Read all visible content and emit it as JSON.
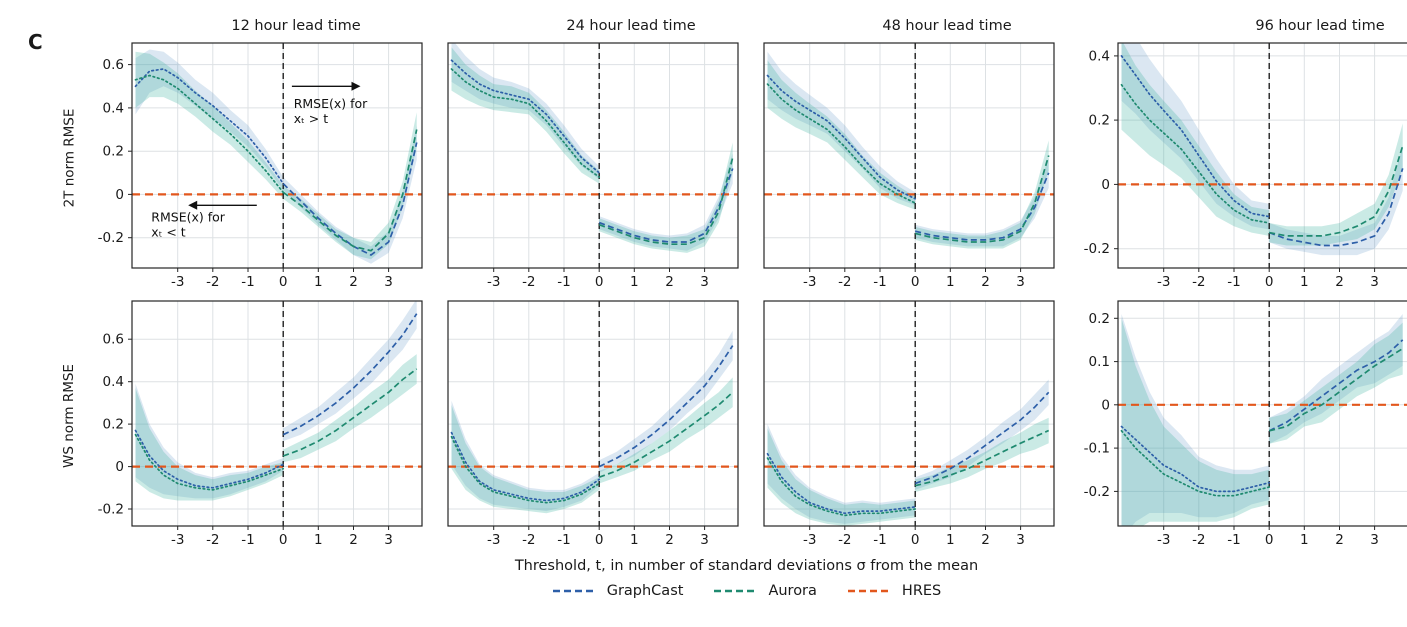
{
  "panel_label": "C",
  "xaxis_label": "Threshold, t, in number of standard deviations σ from the mean",
  "rows": [
    {
      "label": "2T norm RMSE"
    },
    {
      "label": "WS norm RMSE"
    }
  ],
  "legend": [
    {
      "label": "GraphCast",
      "color": "#2d5fa8"
    },
    {
      "label": "Aurora",
      "color": "#1f8a70"
    },
    {
      "label": "HRES",
      "color": "#e2571d"
    }
  ],
  "colors": {
    "graphcast_band": "rgba(77,133,189,0.20)",
    "aurora_band": "rgba(64,180,160,0.28)",
    "grid": "#dde1e4",
    "zero_line": "#111111"
  },
  "chart_data": [
    {
      "type": "line",
      "title": "12 hour lead time",
      "row": "2T norm RMSE",
      "xlim": [
        -4.3,
        3.95
      ],
      "ylim": [
        -0.34,
        0.7
      ],
      "xticks": [
        -3,
        -2,
        -1,
        0,
        1,
        2,
        3
      ],
      "yticks": [
        -0.2,
        0,
        0.2,
        0.4,
        0.6
      ],
      "hres_y": 0,
      "x_left": [
        -4.2,
        -3.8,
        -3.4,
        -3.0,
        -2.5,
        -2.0,
        -1.5,
        -1.0,
        -0.5,
        0.0
      ],
      "x_right": [
        0.0,
        0.5,
        1.0,
        1.5,
        2.0,
        2.5,
        3.0,
        3.4,
        3.8
      ],
      "spread_left": [
        0.13,
        0.1,
        0.08,
        0.07,
        0.06,
        0.06,
        0.05,
        0.05,
        0.04,
        0.03
      ],
      "spread_right": [
        0.03,
        0.03,
        0.03,
        0.03,
        0.04,
        0.04,
        0.05,
        0.06,
        0.08
      ],
      "series": [
        {
          "name": "GraphCast",
          "left": [
            0.5,
            0.57,
            0.58,
            0.54,
            0.47,
            0.41,
            0.34,
            0.27,
            0.17,
            0.05
          ],
          "right": [
            0.05,
            -0.03,
            -0.11,
            -0.18,
            -0.24,
            -0.28,
            -0.22,
            -0.05,
            0.24
          ]
        },
        {
          "name": "Aurora",
          "left": [
            0.53,
            0.55,
            0.53,
            0.49,
            0.42,
            0.35,
            0.28,
            0.2,
            0.11,
            0.01
          ],
          "right": [
            0.01,
            -0.05,
            -0.12,
            -0.19,
            -0.24,
            -0.26,
            -0.18,
            0.0,
            0.3
          ]
        }
      ],
      "annotations": [
        {
          "type": "arrow",
          "dir": "right",
          "x1": 0.25,
          "y1": 0.5,
          "x2": 2.2,
          "y2": 0.5
        },
        {
          "type": "text",
          "x": 0.3,
          "y": 0.4,
          "anchor": "start",
          "lines": [
            "RMSE(x) for",
            "xₜ > t"
          ]
        },
        {
          "type": "arrow",
          "dir": "left",
          "x1": -0.75,
          "y1": -0.05,
          "x2": -2.7,
          "y2": -0.05
        },
        {
          "type": "text",
          "x": -3.75,
          "y": -0.125,
          "anchor": "start",
          "lines": [
            "RMSE(x) for",
            "xₜ < t"
          ]
        }
      ]
    },
    {
      "type": "line",
      "title": "24 hour lead time",
      "row": "2T norm RMSE",
      "xlim": [
        -4.3,
        3.95
      ],
      "ylim": [
        -0.34,
        0.7
      ],
      "xticks": [
        -3,
        -2,
        -1,
        0,
        1,
        2,
        3
      ],
      "yticks": [
        -0.2,
        0,
        0.2,
        0.4,
        0.6
      ],
      "hres_y": 0,
      "x_left": [
        -4.2,
        -3.8,
        -3.4,
        -3.0,
        -2.5,
        -2.0,
        -1.5,
        -1.0,
        -0.5,
        0.0
      ],
      "x_right": [
        0.0,
        0.5,
        1.0,
        1.5,
        2.0,
        2.5,
        3.0,
        3.4,
        3.8
      ],
      "spread_left": [
        0.1,
        0.08,
        0.07,
        0.06,
        0.06,
        0.05,
        0.05,
        0.05,
        0.04,
        0.03
      ],
      "spread_right": [
        0.03,
        0.03,
        0.03,
        0.03,
        0.03,
        0.04,
        0.04,
        0.05,
        0.07
      ],
      "series": [
        {
          "name": "GraphCast",
          "left": [
            0.62,
            0.56,
            0.51,
            0.48,
            0.46,
            0.44,
            0.37,
            0.27,
            0.17,
            0.1
          ],
          "right": [
            -0.13,
            -0.16,
            -0.19,
            -0.21,
            -0.22,
            -0.22,
            -0.18,
            -0.06,
            0.12
          ]
        },
        {
          "name": "Aurora",
          "left": [
            0.58,
            0.52,
            0.48,
            0.45,
            0.44,
            0.42,
            0.34,
            0.24,
            0.14,
            0.08
          ],
          "right": [
            -0.14,
            -0.17,
            -0.2,
            -0.22,
            -0.23,
            -0.23,
            -0.2,
            -0.08,
            0.17
          ]
        }
      ]
    },
    {
      "type": "line",
      "title": "48 hour lead time",
      "row": "2T norm RMSE",
      "xlim": [
        -4.3,
        3.95
      ],
      "ylim": [
        -0.34,
        0.7
      ],
      "xticks": [
        -3,
        -2,
        -1,
        0,
        1,
        2,
        3
      ],
      "yticks": [
        -0.2,
        0,
        0.2,
        0.4,
        0.6
      ],
      "hres_y": 0,
      "x_left": [
        -4.2,
        -3.8,
        -3.4,
        -3.0,
        -2.5,
        -2.0,
        -1.5,
        -1.0,
        -0.5,
        0.0
      ],
      "x_right": [
        0.0,
        0.5,
        1.0,
        1.5,
        2.0,
        2.5,
        3.0,
        3.4,
        3.8
      ],
      "spread_left": [
        0.11,
        0.09,
        0.08,
        0.07,
        0.06,
        0.06,
        0.05,
        0.05,
        0.04,
        0.03
      ],
      "spread_right": [
        0.03,
        0.03,
        0.03,
        0.03,
        0.03,
        0.04,
        0.04,
        0.05,
        0.07
      ],
      "series": [
        {
          "name": "GraphCast",
          "left": [
            0.55,
            0.48,
            0.43,
            0.39,
            0.34,
            0.26,
            0.17,
            0.08,
            0.02,
            -0.02
          ],
          "right": [
            -0.17,
            -0.19,
            -0.2,
            -0.21,
            -0.21,
            -0.2,
            -0.16,
            -0.06,
            0.1
          ]
        },
        {
          "name": "Aurora",
          "left": [
            0.51,
            0.44,
            0.39,
            0.35,
            0.3,
            0.22,
            0.13,
            0.05,
            0.0,
            -0.04
          ],
          "right": [
            -0.18,
            -0.2,
            -0.21,
            -0.22,
            -0.22,
            -0.21,
            -0.17,
            -0.04,
            0.18
          ]
        }
      ]
    },
    {
      "type": "line",
      "title": "96 hour lead time",
      "row": "2T norm RMSE",
      "xlim": [
        -4.3,
        3.95
      ],
      "ylim": [
        -0.26,
        0.44
      ],
      "xticks": [
        -3,
        -2,
        -1,
        0,
        1,
        2,
        3
      ],
      "yticks": [
        -0.2,
        0,
        0.2,
        0.4
      ],
      "hres_y": 0,
      "x_left": [
        -4.2,
        -3.8,
        -3.4,
        -3.0,
        -2.5,
        -2.0,
        -1.5,
        -1.0,
        -0.5,
        0.0
      ],
      "x_right": [
        0.0,
        0.5,
        1.0,
        1.5,
        2.0,
        2.5,
        3.0,
        3.4,
        3.8
      ],
      "spread_left": [
        0.14,
        0.12,
        0.11,
        0.1,
        0.09,
        0.08,
        0.07,
        0.05,
        0.04,
        0.04
      ],
      "spread_right": [
        0.03,
        0.03,
        0.03,
        0.03,
        0.03,
        0.04,
        0.04,
        0.05,
        0.07
      ],
      "series": [
        {
          "name": "GraphCast",
          "left": [
            0.4,
            0.34,
            0.28,
            0.23,
            0.17,
            0.09,
            0.01,
            -0.05,
            -0.09,
            -0.1
          ],
          "right": [
            -0.15,
            -0.17,
            -0.18,
            -0.19,
            -0.19,
            -0.18,
            -0.16,
            -0.09,
            0.05
          ]
        },
        {
          "name": "Aurora",
          "left": [
            0.31,
            0.25,
            0.2,
            0.16,
            0.11,
            0.04,
            -0.03,
            -0.08,
            -0.11,
            -0.12
          ],
          "right": [
            -0.15,
            -0.16,
            -0.16,
            -0.16,
            -0.15,
            -0.13,
            -0.1,
            -0.02,
            0.12
          ]
        }
      ]
    },
    {
      "type": "line",
      "title": "12 hour lead time",
      "row": "WS norm RMSE",
      "xlim": [
        -4.3,
        3.95
      ],
      "ylim": [
        -0.28,
        0.78
      ],
      "xticks": [
        -3,
        -2,
        -1,
        0,
        1,
        2,
        3
      ],
      "yticks": [
        -0.2,
        0,
        0.2,
        0.4,
        0.6
      ],
      "hres_y": 0,
      "x_left": [
        -4.2,
        -3.8,
        -3.4,
        -3.0,
        -2.5,
        -2.0,
        -1.5,
        -1.0,
        -0.5,
        0.0
      ],
      "x_right": [
        0.0,
        0.5,
        1.0,
        1.5,
        2.0,
        2.5,
        3.0,
        3.4,
        3.8
      ],
      "spread_left": [
        0.22,
        0.15,
        0.11,
        0.08,
        0.06,
        0.05,
        0.05,
        0.04,
        0.04,
        0.03
      ],
      "spread_right": [
        0.03,
        0.04,
        0.04,
        0.05,
        0.05,
        0.06,
        0.06,
        0.07,
        0.07
      ],
      "series": [
        {
          "name": "GraphCast",
          "left": [
            0.17,
            0.05,
            -0.02,
            -0.06,
            -0.09,
            -0.1,
            -0.08,
            -0.06,
            -0.03,
            0.01
          ],
          "right": [
            0.15,
            0.19,
            0.24,
            0.3,
            0.37,
            0.45,
            0.54,
            0.62,
            0.72
          ]
        },
        {
          "name": "Aurora",
          "left": [
            0.15,
            0.03,
            -0.04,
            -0.08,
            -0.1,
            -0.11,
            -0.09,
            -0.07,
            -0.04,
            -0.01
          ],
          "right": [
            0.05,
            0.08,
            0.12,
            0.17,
            0.23,
            0.29,
            0.35,
            0.41,
            0.46
          ]
        }
      ]
    },
    {
      "type": "line",
      "title": "24 hour lead time",
      "row": "WS norm RMSE",
      "xlim": [
        -4.3,
        3.95
      ],
      "ylim": [
        -0.28,
        0.78
      ],
      "xticks": [
        -3,
        -2,
        -1,
        0,
        1,
        2,
        3
      ],
      "yticks": [
        -0.2,
        0,
        0.2,
        0.4,
        0.6
      ],
      "hres_y": 0,
      "x_left": [
        -4.2,
        -3.8,
        -3.4,
        -3.0,
        -2.5,
        -2.0,
        -1.5,
        -1.0,
        -0.5,
        0.0
      ],
      "x_right": [
        0.0,
        0.5,
        1.0,
        1.5,
        2.0,
        2.5,
        3.0,
        3.4,
        3.8
      ],
      "spread_left": [
        0.15,
        0.11,
        0.08,
        0.07,
        0.06,
        0.05,
        0.05,
        0.04,
        0.04,
        0.03
      ],
      "spread_right": [
        0.03,
        0.03,
        0.04,
        0.04,
        0.05,
        0.05,
        0.06,
        0.06,
        0.07
      ],
      "series": [
        {
          "name": "GraphCast",
          "left": [
            0.16,
            0.02,
            -0.07,
            -0.11,
            -0.13,
            -0.15,
            -0.16,
            -0.15,
            -0.12,
            -0.06
          ],
          "right": [
            0.0,
            0.04,
            0.09,
            0.15,
            0.22,
            0.3,
            0.38,
            0.47,
            0.57
          ]
        },
        {
          "name": "Aurora",
          "left": [
            0.14,
            0.0,
            -0.08,
            -0.12,
            -0.14,
            -0.16,
            -0.17,
            -0.16,
            -0.13,
            -0.08
          ],
          "right": [
            -0.05,
            -0.02,
            0.02,
            0.07,
            0.12,
            0.18,
            0.24,
            0.29,
            0.35
          ]
        }
      ]
    },
    {
      "type": "line",
      "title": "48 hour lead time",
      "row": "WS norm RMSE",
      "xlim": [
        -4.3,
        3.95
      ],
      "ylim": [
        -0.28,
        0.78
      ],
      "xticks": [
        -3,
        -2,
        -1,
        0,
        1,
        2,
        3
      ],
      "yticks": [
        -0.2,
        0,
        0.2,
        0.4,
        0.6
      ],
      "hres_y": 0,
      "x_left": [
        -4.2,
        -3.8,
        -3.4,
        -3.0,
        -2.5,
        -2.0,
        -1.5,
        -1.0,
        -0.5,
        0.0
      ],
      "x_right": [
        0.0,
        0.5,
        1.0,
        1.5,
        2.0,
        2.5,
        3.0,
        3.4,
        3.8
      ],
      "spread_left": [
        0.14,
        0.1,
        0.08,
        0.07,
        0.06,
        0.05,
        0.05,
        0.04,
        0.04,
        0.04
      ],
      "spread_right": [
        0.03,
        0.03,
        0.04,
        0.04,
        0.04,
        0.05,
        0.05,
        0.06,
        0.06
      ],
      "series": [
        {
          "name": "GraphCast",
          "left": [
            0.06,
            -0.05,
            -0.12,
            -0.17,
            -0.2,
            -0.22,
            -0.21,
            -0.21,
            -0.2,
            -0.19
          ],
          "right": [
            -0.08,
            -0.05,
            -0.01,
            0.04,
            0.1,
            0.16,
            0.22,
            0.28,
            0.35
          ]
        },
        {
          "name": "Aurora",
          "left": [
            0.04,
            -0.07,
            -0.14,
            -0.18,
            -0.21,
            -0.23,
            -0.22,
            -0.22,
            -0.21,
            -0.2
          ],
          "right": [
            -0.09,
            -0.07,
            -0.04,
            -0.01,
            0.03,
            0.07,
            0.11,
            0.14,
            0.17
          ]
        }
      ]
    },
    {
      "type": "line",
      "title": "96 hour lead time",
      "row": "WS norm RMSE",
      "xlim": [
        -4.3,
        3.95
      ],
      "ylim": [
        -0.28,
        0.24
      ],
      "xticks": [
        -3,
        -2,
        -1,
        0,
        1,
        2,
        3
      ],
      "yticks": [
        -0.2,
        -0.1,
        0,
        0.1,
        0.2
      ],
      "hres_y": 0,
      "x_left": [
        -4.2,
        -3.8,
        -3.4,
        -3.0,
        -2.5,
        -2.0,
        -1.5,
        -1.0,
        -0.5,
        0.0
      ],
      "x_right": [
        0.0,
        0.5,
        1.0,
        1.5,
        2.0,
        2.5,
        3.0,
        3.4,
        3.8
      ],
      "spread_left": [
        0.26,
        0.19,
        0.14,
        0.11,
        0.09,
        0.07,
        0.06,
        0.05,
        0.04,
        0.04
      ],
      "spread_right": [
        0.03,
        0.03,
        0.03,
        0.04,
        0.04,
        0.04,
        0.05,
        0.05,
        0.06
      ],
      "series": [
        {
          "name": "GraphCast",
          "left": [
            -0.05,
            -0.08,
            -0.11,
            -0.14,
            -0.16,
            -0.19,
            -0.2,
            -0.2,
            -0.19,
            -0.18
          ],
          "right": [
            -0.06,
            -0.04,
            -0.01,
            0.02,
            0.05,
            0.08,
            0.1,
            0.12,
            0.15
          ]
        },
        {
          "name": "Aurora",
          "left": [
            -0.06,
            -0.1,
            -0.13,
            -0.16,
            -0.18,
            -0.2,
            -0.21,
            -0.21,
            -0.2,
            -0.19
          ],
          "right": [
            -0.06,
            -0.05,
            -0.02,
            0.0,
            0.03,
            0.06,
            0.09,
            0.11,
            0.13
          ]
        }
      ]
    }
  ]
}
